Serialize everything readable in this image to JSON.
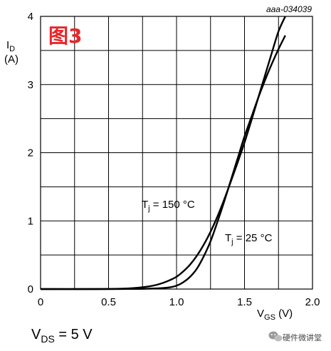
{
  "figure_id": "aaa-034039",
  "figure_tag": "图3",
  "condition": {
    "main": "V",
    "sub": "DS",
    "rest": " = 5 V"
  },
  "watermark": {
    "text": "硬件微讲堂",
    "icon": "wechat-logo-icon"
  },
  "colors": {
    "line": "#000000",
    "grid": "#000000",
    "tag": "#e8262a"
  },
  "chart_data": {
    "type": "line",
    "title": "",
    "xlabel": {
      "main": "V",
      "sub": "GS",
      "unit": " (V)"
    },
    "ylabel": {
      "main": "I",
      "sub": "D",
      "unit": "(A)"
    },
    "xlim": [
      0,
      2.0
    ],
    "ylim": [
      0,
      4
    ],
    "grid": true,
    "x_ticks": [
      0,
      0.5,
      1.0,
      1.5,
      2.0
    ],
    "x_tick_labels": [
      "0",
      "0.5",
      "1.0",
      "1.5",
      "2.0"
    ],
    "y_ticks": [
      0,
      1,
      2,
      3,
      4
    ],
    "y_tick_labels": [
      "0",
      "1",
      "2",
      "3",
      "4"
    ],
    "x_minor_step": 0.25,
    "y_minor_step": 0.5,
    "series": [
      {
        "name": "",
        "label": {
          "main": "T",
          "sub": "j",
          "rest": " = 150 °C"
        },
        "x": [
          0,
          0.4,
          0.55,
          0.65,
          0.72,
          0.8,
          0.85,
          0.9,
          0.95,
          1.0,
          1.05,
          1.1,
          1.15,
          1.2,
          1.25,
          1.3,
          1.35,
          1.4,
          1.45,
          1.5,
          1.55,
          1.6,
          1.65,
          1.7,
          1.75,
          1.8
        ],
        "y": [
          0,
          0,
          0.003,
          0.01,
          0.02,
          0.04,
          0.06,
          0.09,
          0.13,
          0.18,
          0.26,
          0.36,
          0.49,
          0.65,
          0.84,
          1.06,
          1.31,
          1.58,
          1.86,
          2.15,
          2.47,
          2.8,
          3.13,
          3.46,
          3.78,
          4.0
        ]
      },
      {
        "name": "",
        "label": {
          "main": "T",
          "sub": "j",
          "rest": " = 25 °C"
        },
        "x": [
          0,
          0.5,
          0.7,
          0.8,
          0.9,
          0.95,
          1.0,
          1.05,
          1.1,
          1.15,
          1.2,
          1.25,
          1.3,
          1.35,
          1.4,
          1.45,
          1.5,
          1.55,
          1.6,
          1.65,
          1.7,
          1.75,
          1.8
        ],
        "y": [
          0,
          0,
          0.002,
          0.006,
          0.015,
          0.025,
          0.05,
          0.1,
          0.18,
          0.3,
          0.48,
          0.7,
          0.98,
          1.28,
          1.6,
          1.92,
          2.24,
          2.52,
          2.8,
          3.06,
          3.3,
          3.52,
          3.72
        ]
      }
    ]
  }
}
